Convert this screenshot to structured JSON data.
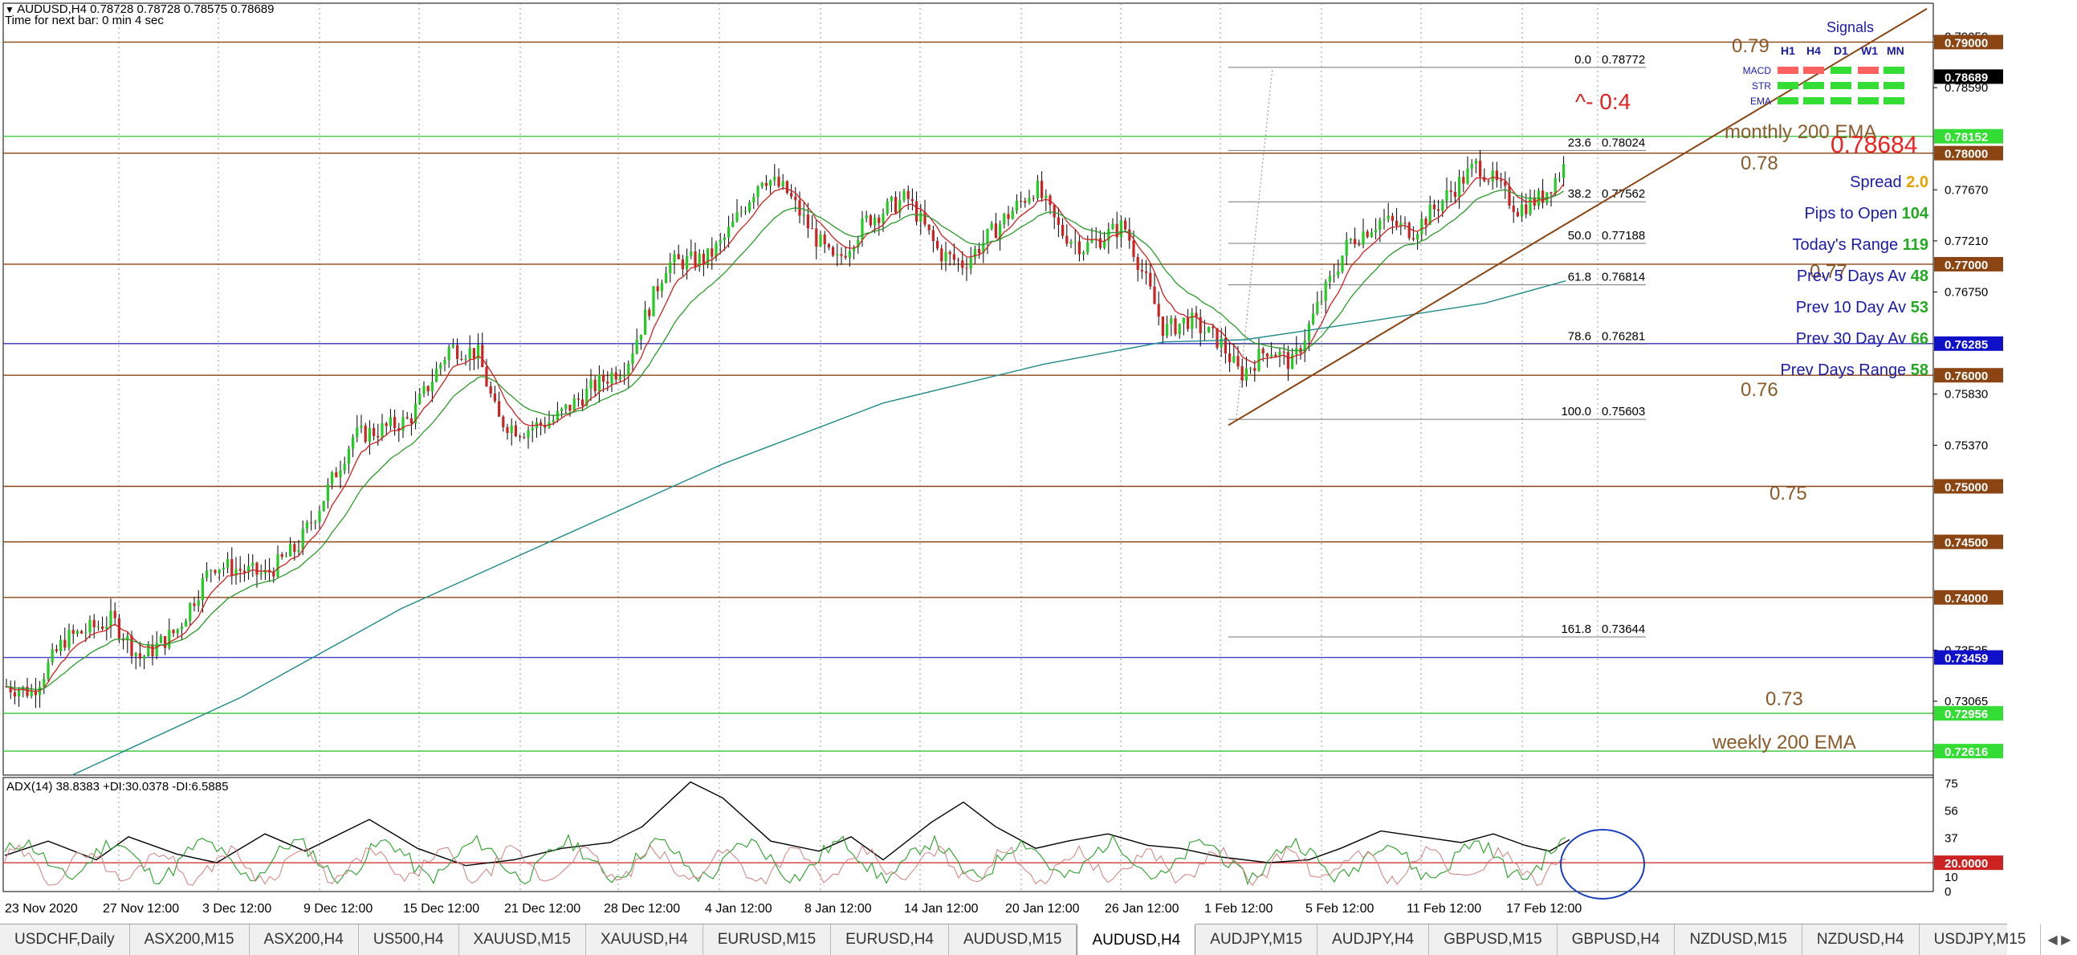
{
  "header": {
    "title": "AUDUSD,H4  0.78728 0.78728 0.78575 0.78689",
    "countdown": "Time for next bar: 0 min 4 sec"
  },
  "price_axis": {
    "ticks": [
      "0.79050",
      "0.78590",
      "0.77670",
      "0.77210",
      "0.76750",
      "0.75830",
      "0.75370",
      "0.73525",
      "0.73065"
    ],
    "ticks_values": [
      0.7905,
      0.7859,
      0.7767,
      0.7721,
      0.7675,
      0.7583,
      0.7537,
      0.73525,
      0.73065
    ],
    "tags": [
      {
        "text": "0.79000",
        "value": 0.79,
        "bg": "#8b4513",
        "fg": "#ffffff"
      },
      {
        "text": "0.78689",
        "value": 0.78689,
        "bg": "#000000",
        "fg": "#ffffff"
      },
      {
        "text": "0.78152",
        "value": 0.78152,
        "bg": "#33dd33",
        "fg": "#ffffff"
      },
      {
        "text": "0.78000",
        "value": 0.78,
        "bg": "#8b4513",
        "fg": "#ffffff"
      },
      {
        "text": "0.77000",
        "value": 0.77,
        "bg": "#8b4513",
        "fg": "#ffffff"
      },
      {
        "text": "0.76285",
        "value": 0.76285,
        "bg": "#1010c8",
        "fg": "#ffffff"
      },
      {
        "text": "0.76000",
        "value": 0.76,
        "bg": "#8b4513",
        "fg": "#ffffff"
      },
      {
        "text": "0.75000",
        "value": 0.75,
        "bg": "#8b4513",
        "fg": "#ffffff"
      },
      {
        "text": "0.74500",
        "value": 0.745,
        "bg": "#8b4513",
        "fg": "#ffffff"
      },
      {
        "text": "0.74000",
        "value": 0.74,
        "bg": "#8b4513",
        "fg": "#ffffff"
      },
      {
        "text": "0.73459",
        "value": 0.73459,
        "bg": "#1010c8",
        "fg": "#ffffff"
      },
      {
        "text": "0.72956",
        "value": 0.72956,
        "bg": "#33dd33",
        "fg": "#ffffff"
      },
      {
        "text": "0.72616",
        "value": 0.72616,
        "bg": "#33dd33",
        "fg": "#ffffff"
      }
    ]
  },
  "time_axis": {
    "labels": [
      "23 Nov 2020",
      "27 Nov 12:00",
      "3 Dec 12:00",
      "9 Dec 12:00",
      "15 Dec 12:00",
      "21 Dec 12:00",
      "28 Dec 12:00",
      "4 Jan 12:00",
      "8 Jan 12:00",
      "14 Jan 12:00",
      "20 Jan 12:00",
      "26 Jan 12:00",
      "1 Feb 12:00",
      "5 Feb 12:00",
      "11 Feb 12:00",
      "17 Feb 12:00"
    ]
  },
  "horizontal_lines": [
    {
      "value": 0.79,
      "color": "#8b4513"
    },
    {
      "value": 0.78152,
      "color": "#44cc44"
    },
    {
      "value": 0.78,
      "color": "#8b4513"
    },
    {
      "value": 0.77,
      "color": "#8b4513"
    },
    {
      "value": 0.76285,
      "color": "#3030c0"
    },
    {
      "value": 0.76,
      "color": "#8b4513"
    },
    {
      "value": 0.75,
      "color": "#8b4513"
    },
    {
      "value": 0.745,
      "color": "#8b4513"
    },
    {
      "value": 0.74,
      "color": "#8b4513"
    },
    {
      "value": 0.73459,
      "color": "#4040c0"
    },
    {
      "value": 0.72956,
      "color": "#44cc44"
    },
    {
      "value": 0.72616,
      "color": "#44cc44"
    }
  ],
  "fibonacci": {
    "levels": [
      {
        "pct": "0.0",
        "price": "0.78772",
        "value": 0.78772
      },
      {
        "pct": "23.6",
        "price": "0.78024",
        "value": 0.78024
      },
      {
        "pct": "38.2",
        "price": "0.77562",
        "value": 0.77562
      },
      {
        "pct": "50.0",
        "price": "0.77188",
        "value": 0.77188
      },
      {
        "pct": "61.8",
        "price": "0.76814",
        "value": 0.76814
      },
      {
        "pct": "78.6",
        "price": "0.76281",
        "value": 0.76281
      },
      {
        "pct": "100.0",
        "price": "0.75603",
        "value": 0.75603
      },
      {
        "pct": "161.8",
        "price": "0.73644",
        "value": 0.73644
      }
    ]
  },
  "annotations": {
    "level_079": "0.79",
    "level_078": "0.78",
    "level_077": "0.77",
    "level_076": "0.76",
    "level_075": "0.75",
    "level_073": "0.73",
    "monthly_ema": "monthly 200 EMA",
    "weekly_ema": "weekly 200 EMA",
    "ratio": "^- 0:4",
    "big_price": "0.78684"
  },
  "signals": {
    "title": "Signals",
    "timeframes": [
      "H1",
      "H4",
      "D1",
      "W1",
      "MN"
    ],
    "rows": [
      {
        "label": "MACD",
        "colors": [
          "#ff6060",
          "#ff6060",
          "#33dd33",
          "#ff6060",
          "#33dd33"
        ]
      },
      {
        "label": "STR",
        "colors": [
          "#33dd33",
          "#33dd33",
          "#33dd33",
          "#33dd33",
          "#33dd33"
        ]
      },
      {
        "label": "EMA",
        "colors": [
          "#33dd33",
          "#33dd33",
          "#33dd33",
          "#33dd33",
          "#33dd33"
        ]
      }
    ]
  },
  "stats": [
    {
      "label": "Spread",
      "value": "2.0",
      "value_color": "#e8a000"
    },
    {
      "label": "Pips to Open",
      "value": "104",
      "value_color": "#22aa22"
    },
    {
      "label": "Today's Range",
      "value": "119",
      "value_color": "#22aa22"
    },
    {
      "label": "Prev 5 Days Av",
      "value": "48",
      "value_color": "#22aa22"
    },
    {
      "label": "Prev 10 Day Av",
      "value": "53",
      "value_color": "#22aa22"
    },
    {
      "label": "Prev 30 Day Av",
      "value": "66",
      "value_color": "#22aa22"
    },
    {
      "label": "Prev Days Range",
      "value": "58",
      "value_color": "#22aa22"
    }
  ],
  "adx": {
    "label": "ADX(14) 38.8383 +DI:30.0378 -DI:6.5885",
    "ticks": [
      "75",
      "56",
      "37",
      "10",
      "0"
    ],
    "ticks_values": [
      75,
      56,
      37,
      10,
      0
    ],
    "level_tag": "20.0000",
    "level_value": 20
  },
  "tabs": [
    {
      "label": "USDCHF,Daily",
      "active": false
    },
    {
      "label": "ASX200,M15",
      "active": false
    },
    {
      "label": "ASX200,H4",
      "active": false
    },
    {
      "label": "US500,H4",
      "active": false
    },
    {
      "label": "XAUUSD,M15",
      "active": false
    },
    {
      "label": "XAUUSD,H4",
      "active": false
    },
    {
      "label": "EURUSD,M15",
      "active": false
    },
    {
      "label": "EURUSD,H4",
      "active": false
    },
    {
      "label": "AUDUSD,M15",
      "active": false
    },
    {
      "label": "AUDUSD,H4",
      "active": true
    },
    {
      "label": "AUDJPY,M15",
      "active": false
    },
    {
      "label": "AUDJPY,H4",
      "active": false
    },
    {
      "label": "GBPUSD,M15",
      "active": false
    },
    {
      "label": "GBPUSD,H4",
      "active": false
    },
    {
      "label": "NZDUSD,M15",
      "active": false
    },
    {
      "label": "NZDUSD,H4",
      "active": false
    },
    {
      "label": "USDJPY,M15",
      "active": false
    }
  ],
  "colors": {
    "bull": "#22cc22",
    "bear": "#cc2222",
    "ema_fast": "#cc2222",
    "ema_mid": "#2a9a2a",
    "ema_slow": "#1f8a8a",
    "trendline": "#8b4513",
    "adx_main": "#000000",
    "adx_plus": "#2aa02a",
    "adx_minus": "#d08080"
  }
}
